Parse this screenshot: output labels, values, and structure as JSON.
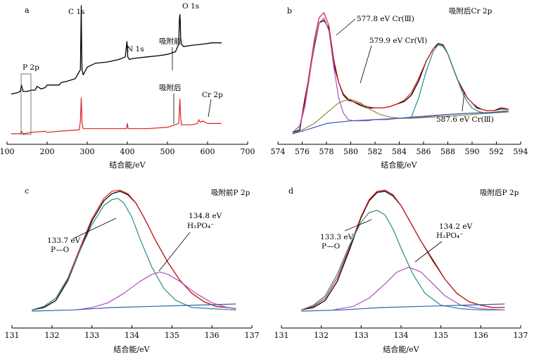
{
  "chart_data": [
    {
      "panel": "a",
      "type": "line",
      "xlabel": "结合能/eV",
      "xlim": [
        100,
        700
      ],
      "xticks": [
        "100",
        "200",
        "300",
        "400",
        "500",
        "600",
        "700"
      ],
      "peak_labels": [
        "C 1s",
        "N 1s",
        "O 1s",
        "P 2p",
        "Cr 2p"
      ],
      "annotations": [
        "吸附前",
        "吸附后"
      ],
      "series": [
        {
          "name": "吸附前",
          "color": "#000000",
          "x": [
            110,
            125,
            133,
            136,
            140,
            150,
            160,
            170,
            175,
            185,
            195,
            200,
            230,
            235,
            250,
            270,
            283,
            284,
            285,
            286,
            287,
            290,
            300,
            320,
            350,
            380,
            395,
            399,
            400,
            401,
            405,
            420,
            450,
            480,
            500,
            520,
            528,
            530,
            531,
            532,
            533,
            535,
            540,
            560,
            590,
            610,
            635
          ],
          "y": [
            0.31,
            0.32,
            0.33,
            0.38,
            0.33,
            0.33,
            0.34,
            0.34,
            0.37,
            0.35,
            0.36,
            0.38,
            0.38,
            0.4,
            0.41,
            0.43,
            0.5,
            0.75,
            1.0,
            0.7,
            0.5,
            0.46,
            0.52,
            0.55,
            0.56,
            0.58,
            0.6,
            0.72,
            0.68,
            0.6,
            0.58,
            0.59,
            0.6,
            0.61,
            0.62,
            0.64,
            0.7,
            0.9,
            0.93,
            0.88,
            0.75,
            0.7,
            0.68,
            0.69,
            0.7,
            0.71,
            0.71
          ]
        },
        {
          "name": "吸附后",
          "color": "#e02020",
          "x": [
            110,
            133,
            136,
            140,
            160,
            195,
            200,
            230,
            280,
            283,
            285,
            287,
            290,
            300,
            350,
            398,
            400,
            402,
            450,
            500,
            528,
            531,
            533,
            535,
            560,
            575,
            578,
            582,
            588,
            600,
            635
          ],
          "y": [
            0.0,
            0.0,
            0.02,
            0.0,
            0.01,
            0.02,
            0.01,
            0.02,
            0.03,
            0.1,
            0.28,
            0.08,
            0.04,
            0.04,
            0.04,
            0.04,
            0.08,
            0.04,
            0.04,
            0.05,
            0.08,
            0.27,
            0.12,
            0.07,
            0.07,
            0.08,
            0.11,
            0.09,
            0.1,
            0.08,
            0.08
          ]
        }
      ]
    },
    {
      "panel": "b",
      "type": "line",
      "title": "吸附后Cr 2p",
      "xlabel": "结合能/eV",
      "xlim": [
        574,
        594
      ],
      "xticks": [
        "574",
        "576",
        "578",
        "580",
        "582",
        "584",
        "586",
        "588",
        "590",
        "592",
        "594"
      ],
      "annotations": [
        "577.8 eV Cr(Ⅲ)",
        "579.9 eV Cr(Ⅵ)",
        "587.6 eV Cr(Ⅲ)"
      ],
      "series": [
        {
          "name": "raw",
          "color": "#000000",
          "x": [
            575.2,
            575.8,
            576.2,
            576.6,
            577.0,
            577.4,
            577.8,
            578.2,
            578.6,
            579.0,
            579.4,
            579.8,
            580.2,
            580.8,
            581.4,
            582.0,
            582.6,
            583.2,
            583.8,
            584.4,
            585.0,
            585.6,
            586.2,
            586.8,
            587.2,
            587.6,
            588.0,
            588.4,
            588.8,
            589.2,
            589.6,
            590.0,
            590.4,
            590.8,
            591.2,
            591.8,
            592.4,
            593.0
          ],
          "y": [
            0.03,
            0.05,
            0.28,
            0.48,
            0.7,
            0.88,
            0.9,
            0.84,
            0.56,
            0.42,
            0.32,
            0.28,
            0.27,
            0.24,
            0.22,
            0.22,
            0.22,
            0.23,
            0.25,
            0.27,
            0.32,
            0.43,
            0.58,
            0.68,
            0.72,
            0.71,
            0.64,
            0.54,
            0.44,
            0.37,
            0.3,
            0.26,
            0.22,
            0.21,
            0.2,
            0.2,
            0.22,
            0.21
          ]
        },
        {
          "name": "fit",
          "color": "#e02020",
          "x": [
            575.2,
            575.8,
            576.2,
            576.6,
            577.0,
            577.4,
            577.8,
            578.2,
            578.6,
            579.0,
            579.4,
            579.8,
            580.2,
            580.8,
            581.4,
            582.0,
            582.6,
            583.2,
            583.8,
            584.4,
            585.0,
            585.6,
            586.2,
            586.8,
            587.2,
            587.6,
            588.0,
            588.4,
            588.8,
            589.2,
            589.6,
            590.0,
            590.4,
            590.8,
            591.2,
            591.8,
            592.4,
            593.0
          ],
          "y": [
            0.03,
            0.08,
            0.25,
            0.5,
            0.75,
            0.92,
            0.96,
            0.86,
            0.6,
            0.42,
            0.33,
            0.29,
            0.27,
            0.25,
            0.23,
            0.22,
            0.22,
            0.23,
            0.25,
            0.28,
            0.34,
            0.45,
            0.58,
            0.68,
            0.71,
            0.7,
            0.64,
            0.54,
            0.44,
            0.36,
            0.3,
            0.26,
            0.23,
            0.21,
            0.2,
            0.2,
            0.21,
            0.21
          ]
        },
        {
          "name": "577.8 eV Cr(Ⅲ)",
          "color": "#b050c0",
          "x": [
            575.2,
            575.8,
            576.2,
            576.6,
            577.0,
            577.4,
            577.8,
            578.2,
            578.6,
            579.0,
            579.4,
            579.8,
            580.2,
            580.8,
            581.4,
            582.0,
            583.0,
            585.0,
            588.0,
            590.0,
            593.0
          ],
          "y": [
            0.03,
            0.08,
            0.22,
            0.46,
            0.72,
            0.88,
            0.92,
            0.82,
            0.54,
            0.3,
            0.18,
            0.13,
            0.12,
            0.12,
            0.12,
            0.13,
            0.13,
            0.15,
            0.17,
            0.18,
            0.19
          ]
        },
        {
          "name": "579.9 eV Cr(Ⅵ)",
          "color": "#8a8a3a",
          "x": [
            575.2,
            576.0,
            577.0,
            578.0,
            579.0,
            579.9,
            580.8,
            581.6,
            582.4,
            583.2,
            584.0,
            585.0,
            587.0,
            590.0,
            593.0
          ],
          "y": [
            0.02,
            0.05,
            0.1,
            0.18,
            0.26,
            0.29,
            0.26,
            0.21,
            0.17,
            0.15,
            0.14,
            0.14,
            0.15,
            0.17,
            0.19
          ]
        },
        {
          "name": "587.6 eV Cr(Ⅲ)",
          "color": "#2a8a8a",
          "x": [
            585.0,
            585.6,
            586.2,
            586.8,
            587.2,
            587.6,
            588.0,
            588.4,
            588.8,
            589.2,
            589.6,
            590.0,
            590.6,
            591.2,
            592.0,
            593.0
          ],
          "y": [
            0.15,
            0.3,
            0.5,
            0.66,
            0.71,
            0.7,
            0.64,
            0.54,
            0.44,
            0.34,
            0.27,
            0.22,
            0.19,
            0.18,
            0.19,
            0.2
          ]
        },
        {
          "name": "background",
          "color": "#3060b0",
          "x": [
            575.2,
            576.0,
            577.0,
            578.0,
            579.0,
            580.0,
            582.0,
            584.0,
            586.0,
            588.0,
            590.0,
            593.0
          ],
          "y": [
            0.02,
            0.04,
            0.07,
            0.1,
            0.11,
            0.12,
            0.13,
            0.14,
            0.15,
            0.17,
            0.18,
            0.19
          ]
        }
      ]
    },
    {
      "panel": "c",
      "type": "line",
      "title": "吸附前P 2p",
      "xlabel": "结合能/eV",
      "xlim": [
        131,
        137
      ],
      "xticks": [
        "131",
        "132",
        "133",
        "134",
        "135",
        "136",
        "137"
      ],
      "annotations": [
        "133.7 eV",
        "P—O",
        "134.8 eV",
        "H₂PO₄⁻"
      ],
      "series": [
        {
          "name": "raw",
          "color": "#000000",
          "x": [
            131.5,
            131.8,
            132.1,
            132.4,
            132.7,
            133.0,
            133.3,
            133.5,
            133.7,
            133.9,
            134.1,
            134.3,
            134.6,
            134.9,
            135.2,
            135.5,
            135.8,
            136.1,
            136.4,
            136.6
          ],
          "y": [
            0.0,
            0.02,
            0.08,
            0.25,
            0.5,
            0.75,
            0.92,
            0.98,
            1.0,
            0.97,
            0.9,
            0.78,
            0.58,
            0.4,
            0.25,
            0.14,
            0.07,
            0.03,
            0.02,
            0.01
          ]
        },
        {
          "name": "fit",
          "color": "#e02020",
          "x": [
            131.5,
            131.8,
            132.1,
            132.4,
            132.7,
            133.0,
            133.3,
            133.5,
            133.7,
            133.9,
            134.1,
            134.3,
            134.6,
            134.9,
            135.2,
            135.5,
            135.8,
            136.1,
            136.4,
            136.6
          ],
          "y": [
            0.0,
            0.03,
            0.1,
            0.27,
            0.52,
            0.77,
            0.94,
            1.0,
            1.01,
            0.98,
            0.9,
            0.78,
            0.58,
            0.4,
            0.25,
            0.14,
            0.07,
            0.03,
            0.02,
            0.01
          ]
        },
        {
          "name": "133.7 eV P—O",
          "color": "#2a8a8a",
          "x": [
            131.5,
            131.8,
            132.1,
            132.4,
            132.7,
            133.0,
            133.3,
            133.5,
            133.65,
            133.8,
            134.0,
            134.2,
            134.5,
            134.8,
            135.1,
            135.5,
            136.0,
            136.6
          ],
          "y": [
            0.0,
            0.03,
            0.1,
            0.26,
            0.5,
            0.72,
            0.88,
            0.93,
            0.94,
            0.9,
            0.78,
            0.6,
            0.36,
            0.18,
            0.08,
            0.02,
            0.01,
            0.0
          ]
        },
        {
          "name": "134.8 eV H₂PO₄⁻",
          "color": "#b050c0",
          "x": [
            132.6,
            133.0,
            133.4,
            133.8,
            134.2,
            134.5,
            134.7,
            134.9,
            135.2,
            135.6,
            136.0,
            136.4,
            136.6
          ],
          "y": [
            0.0,
            0.02,
            0.06,
            0.14,
            0.24,
            0.3,
            0.32,
            0.3,
            0.24,
            0.14,
            0.06,
            0.02,
            0.01
          ]
        },
        {
          "name": "background",
          "color": "#3060b0",
          "x": [
            131.5,
            132.5,
            133.5,
            134.5,
            135.5,
            136.6
          ],
          "y": [
            -0.01,
            0.0,
            0.02,
            0.03,
            0.04,
            0.05
          ]
        }
      ]
    },
    {
      "panel": "d",
      "type": "line",
      "title": "吸附后P 2p",
      "xlabel": "结合能/eV",
      "xlim": [
        131,
        137
      ],
      "xticks": [
        "131",
        "132",
        "133",
        "134",
        "135",
        "136",
        "137"
      ],
      "annotations": [
        "133.3 eV",
        "P—O",
        "134.2 eV",
        "H₂PO₄⁻"
      ],
      "series": [
        {
          "name": "raw",
          "color": "#000000",
          "x": [
            131.5,
            131.8,
            132.1,
            132.4,
            132.7,
            133.0,
            133.2,
            133.4,
            133.6,
            133.8,
            134.0,
            134.2,
            134.5,
            134.8,
            135.1,
            135.4,
            135.7,
            136.0,
            136.3,
            136.6
          ],
          "y": [
            0.0,
            0.02,
            0.08,
            0.24,
            0.5,
            0.78,
            0.92,
            0.99,
            1.0,
            0.96,
            0.88,
            0.76,
            0.58,
            0.42,
            0.26,
            0.14,
            0.07,
            0.04,
            0.02,
            0.02
          ]
        },
        {
          "name": "fit",
          "color": "#e02020",
          "x": [
            131.5,
            131.8,
            132.1,
            132.4,
            132.7,
            133.0,
            133.2,
            133.4,
            133.6,
            133.8,
            134.0,
            134.2,
            134.5,
            134.8,
            135.1,
            135.4,
            135.7,
            136.0,
            136.3,
            136.6
          ],
          "y": [
            0.0,
            0.03,
            0.1,
            0.27,
            0.52,
            0.79,
            0.93,
            1.0,
            1.01,
            0.97,
            0.88,
            0.76,
            0.58,
            0.41,
            0.26,
            0.14,
            0.07,
            0.04,
            0.02,
            0.02
          ]
        },
        {
          "name": "133.3 eV P—O",
          "color": "#2a8a8a",
          "x": [
            131.5,
            131.8,
            132.1,
            132.4,
            132.7,
            133.0,
            133.2,
            133.4,
            133.6,
            133.8,
            134.0,
            134.3,
            134.6,
            135.0,
            135.5,
            136.0,
            136.6
          ],
          "y": [
            0.0,
            0.04,
            0.12,
            0.3,
            0.54,
            0.74,
            0.82,
            0.84,
            0.8,
            0.68,
            0.52,
            0.3,
            0.14,
            0.04,
            0.01,
            0.0,
            0.0
          ]
        },
        {
          "name": "134.2 eV H₂PO₄⁻",
          "color": "#b050c0",
          "x": [
            132.3,
            132.8,
            133.2,
            133.6,
            133.9,
            134.2,
            134.5,
            134.8,
            135.1,
            135.5,
            136.0,
            136.6
          ],
          "y": [
            0.0,
            0.03,
            0.1,
            0.22,
            0.32,
            0.36,
            0.32,
            0.22,
            0.12,
            0.04,
            0.01,
            0.0
          ]
        },
        {
          "name": "background",
          "color": "#3060b0",
          "x": [
            131.5,
            132.5,
            133.5,
            134.5,
            135.5,
            136.6
          ],
          "y": [
            -0.01,
            0.0,
            0.02,
            0.03,
            0.04,
            0.05
          ]
        }
      ]
    }
  ]
}
